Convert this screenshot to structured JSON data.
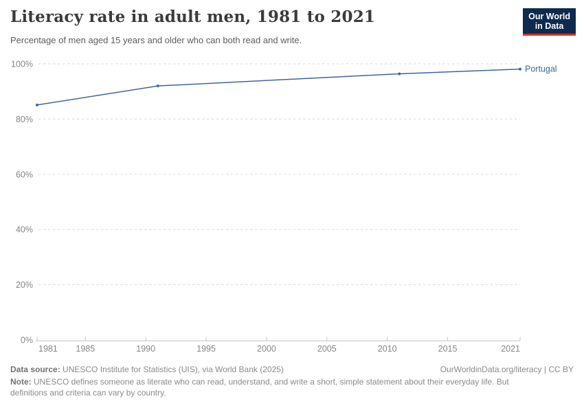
{
  "header": {
    "title": "Literacy rate in adult men, 1981 to 2021",
    "subtitle": "Percentage of men aged 15 years and older who can both read and write.",
    "logo": {
      "line1": "Our World",
      "line2": "in Data",
      "bg": "#0e2a4e",
      "bar": "#dc2f23"
    }
  },
  "chart_data": {
    "type": "line",
    "title": "Literacy rate in adult men, 1981 to 2021",
    "xlabel": "",
    "ylabel": "",
    "xlim": [
      1981,
      2021
    ],
    "ylim": [
      0,
      100
    ],
    "grid": "horizontal-dashed",
    "legend_position": "end-of-line-label",
    "x_ticks": [
      1981,
      1985,
      1990,
      1995,
      2000,
      2005,
      2010,
      2015,
      2021
    ],
    "y_ticks": [
      0,
      20,
      40,
      60,
      80,
      100
    ],
    "y_tick_labels": [
      "0%",
      "20%",
      "40%",
      "60%",
      "80%",
      "100%"
    ],
    "series": [
      {
        "name": "Portugal",
        "color": "#3f659e",
        "x": [
          1981,
          1991,
          2011,
          2021
        ],
        "y": [
          85.1,
          92.0,
          96.4,
          98.1
        ]
      }
    ]
  },
  "footer": {
    "source_label": "Data source:",
    "source_text": " UNESCO Institute for Statistics (UIS), via World Bank (2025)",
    "rights": "OurWorldinData.org/literacy | CC BY",
    "note_label": "Note:",
    "note_text": " UNESCO defines someone as literate who can read, understand, and write a short, simple statement about their everyday life. But definitions and criteria can vary by country."
  }
}
